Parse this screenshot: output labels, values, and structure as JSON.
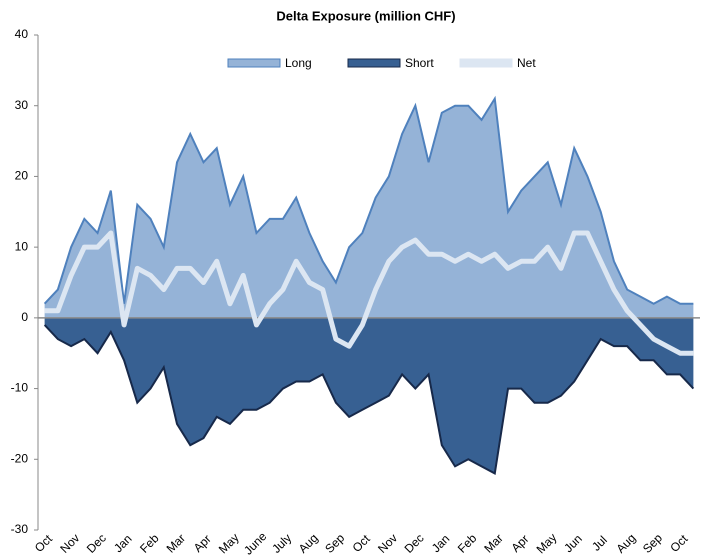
{
  "chart_data": {
    "type": "area",
    "title": "Delta Exposure (million CHF)",
    "categories": [
      "Oct",
      null,
      "Nov",
      null,
      "Dec",
      null,
      "Jan",
      null,
      "Feb",
      null,
      "Mar",
      null,
      "Apr",
      null,
      "May",
      null,
      "June",
      null,
      "July",
      null,
      "Aug",
      null,
      "Sep",
      null,
      "Oct",
      null,
      "Nov",
      null,
      "Dec",
      null,
      "Jan",
      null,
      "Feb",
      null,
      "Mar",
      null,
      "Apr",
      null,
      "May",
      null,
      "Jun",
      null,
      "Jul",
      null,
      "Aug",
      null,
      "Sep",
      null,
      "Oct",
      null
    ],
    "series": [
      {
        "name": "Long",
        "color": "#95b3d7",
        "line_color": "#4f81bd",
        "values": [
          2,
          4,
          10,
          14,
          12,
          18,
          2,
          16,
          14,
          10,
          22,
          26,
          22,
          24,
          16,
          20,
          12,
          14,
          14,
          17,
          12,
          8,
          5,
          10,
          12,
          17,
          20,
          26,
          30,
          22,
          29,
          30,
          30,
          28,
          31,
          15,
          18,
          20,
          22,
          16,
          24,
          20,
          15,
          8,
          4,
          3,
          2,
          3,
          2,
          2
        ]
      },
      {
        "name": "Short",
        "color": "#376092",
        "line_color": "#17294a",
        "values": [
          -1,
          -3,
          -4,
          -3,
          -5,
          -2,
          -6,
          -12,
          -10,
          -7,
          -15,
          -18,
          -17,
          -14,
          -15,
          -13,
          -13,
          -12,
          -10,
          -9,
          -9,
          -8,
          -12,
          -14,
          -13,
          -12,
          -11,
          -8,
          -10,
          -8,
          -18,
          -21,
          -20,
          -21,
          -22,
          -10,
          -10,
          -12,
          -12,
          -11,
          -9,
          -6,
          -3,
          -4,
          -4,
          -6,
          -6,
          -8,
          -8,
          -10
        ]
      },
      {
        "name": "Net",
        "color": "#dce6f2",
        "values": [
          1,
          1,
          6,
          10,
          10,
          12,
          -1,
          7,
          6,
          4,
          7,
          7,
          5,
          8,
          2,
          6,
          -1,
          2,
          4,
          8,
          5,
          4,
          -3,
          -4,
          -1,
          4,
          8,
          10,
          11,
          9,
          9,
          8,
          9,
          8,
          9,
          7,
          8,
          8,
          10,
          7,
          12,
          12,
          8,
          4,
          1,
          -1,
          -3,
          -4,
          -5,
          -5
        ]
      }
    ],
    "ylim": [
      -30,
      40
    ],
    "yticks": [
      -30,
      -20,
      -10,
      0,
      10,
      20,
      30,
      40
    ],
    "legend": "top"
  }
}
